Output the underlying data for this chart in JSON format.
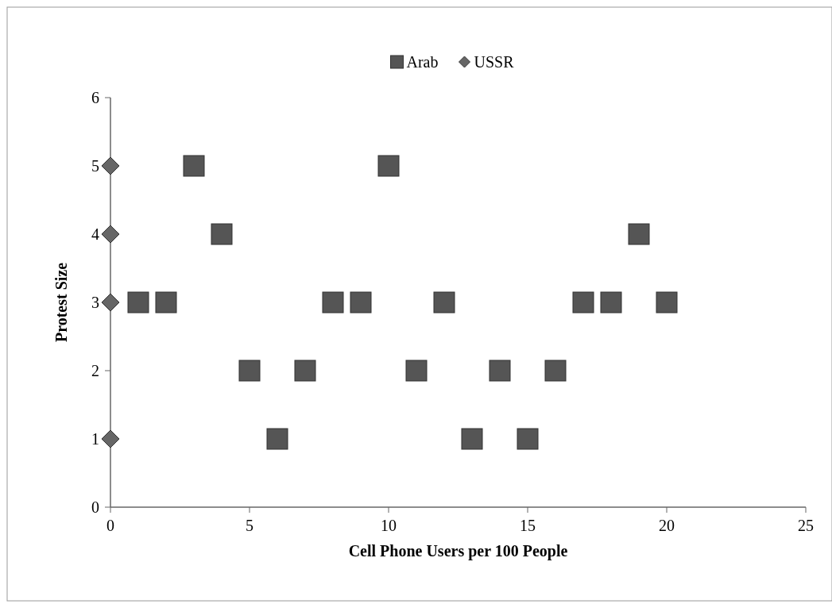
{
  "chart_data": {
    "type": "scatter",
    "xlabel": "Cell Phone Users per 100 People",
    "ylabel": "Protest Size",
    "xlim": [
      0,
      25
    ],
    "xticks": [
      0,
      5,
      10,
      15,
      20,
      25
    ],
    "ylim": [
      0,
      6
    ],
    "yticks": [
      0,
      1,
      2,
      3,
      4,
      5,
      6
    ],
    "grid": false,
    "legend": "top",
    "series": [
      {
        "name": "Arab",
        "color": "#555555",
        "marker": "square",
        "x": [
          1,
          2,
          3,
          4,
          5,
          6,
          7,
          8,
          9,
          10,
          11,
          12,
          13,
          14,
          15,
          16,
          17,
          18,
          19,
          20
        ],
        "values": [
          3,
          3,
          5,
          4,
          2,
          1,
          2,
          3,
          3,
          5,
          2,
          3,
          1,
          2,
          1,
          2,
          3,
          3,
          4,
          3
        ]
      },
      {
        "name": "USSR",
        "color": "#666666",
        "marker": "diamond",
        "x": [
          0,
          0,
          0,
          0
        ],
        "values": [
          5,
          4,
          3,
          1
        ]
      }
    ]
  }
}
